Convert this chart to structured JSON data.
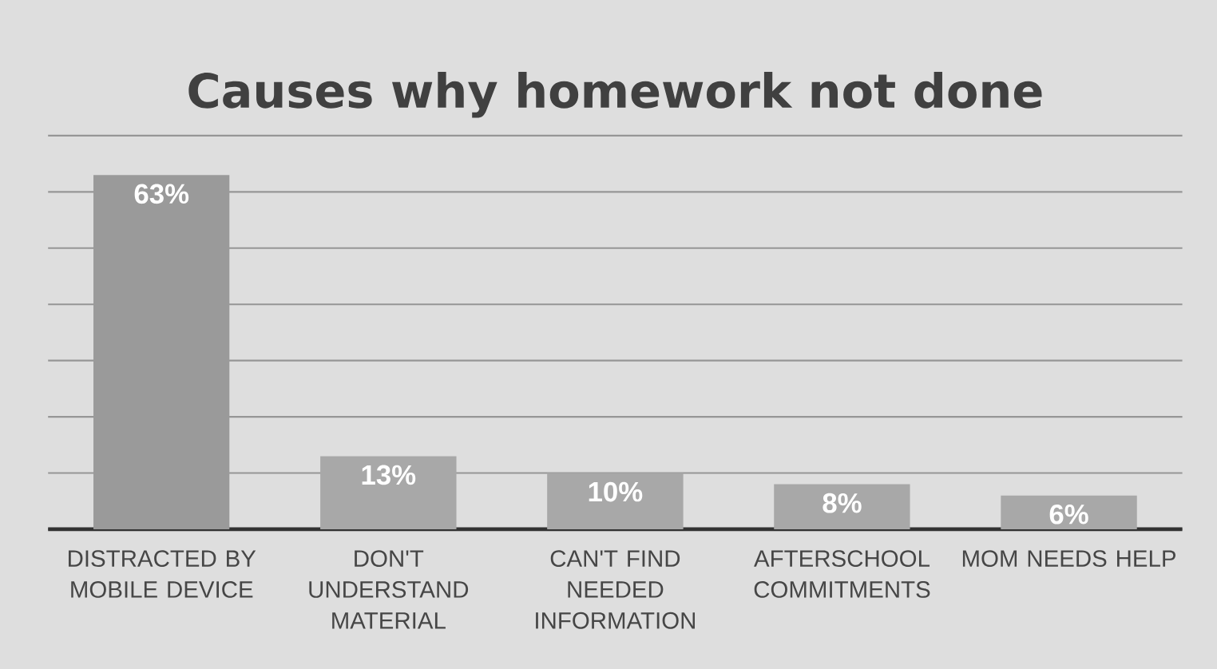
{
  "chart_data": {
    "type": "bar",
    "title": "Causes why homework not done",
    "categories": [
      "DISTRACTED BY MOBILE DEVICE",
      "DON'T UNDERSTAND MATERIAL",
      "CAN'T FIND NEEDED INFORMATION",
      "AFTERSCHOOL COMMITMENTS",
      "MOM NEEDS HELP"
    ],
    "values": [
      63,
      13,
      10,
      8,
      6
    ],
    "value_labels": [
      "63%",
      "13%",
      "10%",
      "8%",
      "6%"
    ],
    "colors": [
      "#9a9a9a",
      "#a8a8a8",
      "#a8a8a8",
      "#a8a8a8",
      "#a8a8a8"
    ],
    "ylim": [
      0,
      70
    ],
    "yticks": [
      {
        "value": 0,
        "label": null
      },
      {
        "value": 10,
        "label": null
      },
      {
        "value": 20,
        "label": null
      },
      {
        "value": 30,
        "label": null
      },
      {
        "value": 40,
        "label": null
      },
      {
        "value": 50,
        "label": null
      },
      {
        "value": 60,
        "label": null
      },
      {
        "value": 70,
        "label": null
      }
    ],
    "grid": "y",
    "tick_labels": "x"
  }
}
